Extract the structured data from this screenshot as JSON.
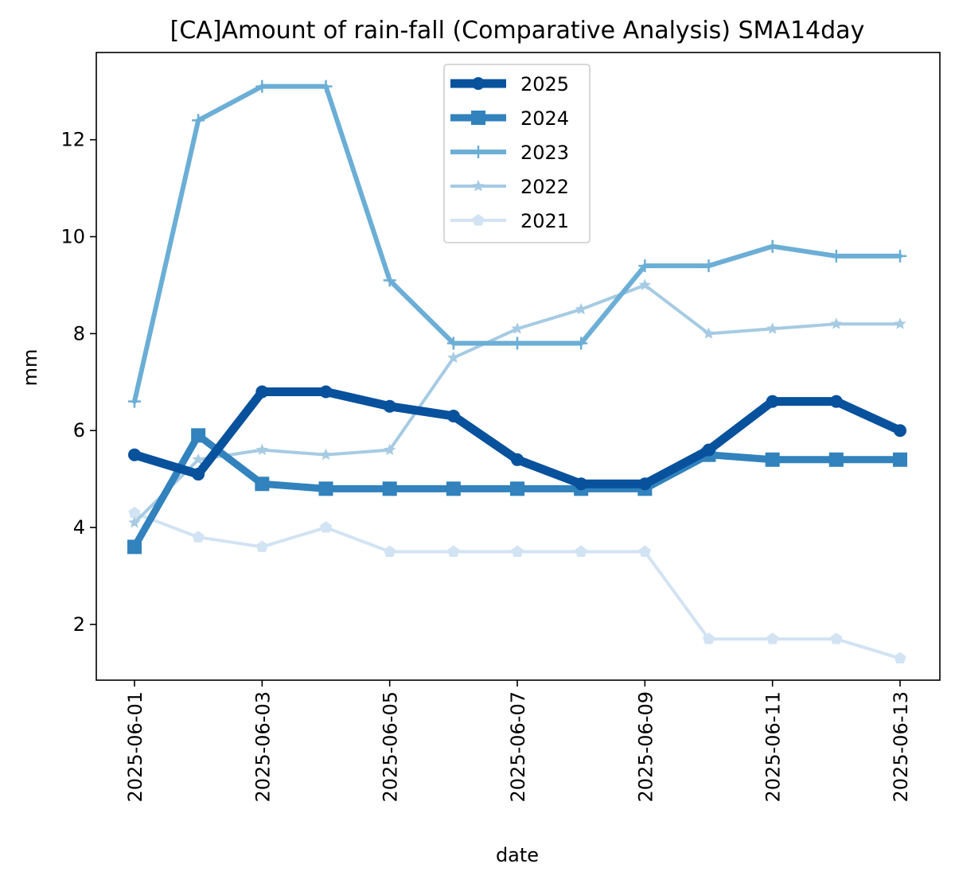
{
  "chart_data": {
    "type": "line",
    "title": "[CA]Amount of rain-fall (Comparative Analysis) SMA14day",
    "xlabel": "date",
    "ylabel": "mm",
    "x": [
      "2025-06-01",
      "2025-06-02",
      "2025-06-03",
      "2025-06-04",
      "2025-06-05",
      "2025-06-06",
      "2025-06-07",
      "2025-06-08",
      "2025-06-09",
      "2025-06-10",
      "2025-06-11",
      "2025-06-12",
      "2025-06-13"
    ],
    "x_ticks": [
      "2025-06-01",
      "2025-06-03",
      "2025-06-05",
      "2025-06-07",
      "2025-06-09",
      "2025-06-11",
      "2025-06-13"
    ],
    "y_ticks": [
      2,
      4,
      6,
      8,
      10,
      12
    ],
    "ylim": [
      0.85,
      13.8
    ],
    "grid": false,
    "legend_position": "top-center",
    "series": [
      {
        "name": "2025",
        "color": "#08519c",
        "marker": "circle",
        "values": [
          5.5,
          5.1,
          6.8,
          6.8,
          6.5,
          6.3,
          5.4,
          4.9,
          4.9,
          5.6,
          6.6,
          6.6,
          6.0
        ]
      },
      {
        "name": "2024",
        "color": "#3182bd",
        "marker": "square",
        "values": [
          3.6,
          5.9,
          4.9,
          4.8,
          4.8,
          4.8,
          4.8,
          4.8,
          4.8,
          5.5,
          5.4,
          5.4,
          5.4
        ]
      },
      {
        "name": "2023",
        "color": "#6baed6",
        "marker": "plus",
        "values": [
          6.6,
          12.4,
          13.1,
          13.1,
          9.1,
          7.8,
          7.8,
          7.8,
          9.4,
          9.4,
          9.8,
          9.6,
          9.6
        ]
      },
      {
        "name": "2022",
        "color": "#a6cbe3",
        "marker": "star",
        "values": [
          4.1,
          5.4,
          5.6,
          5.5,
          5.6,
          7.5,
          8.1,
          8.5,
          9.0,
          8.0,
          8.1,
          8.2,
          8.2
        ]
      },
      {
        "name": "2021",
        "color": "#d2e3f3",
        "marker": "pentagon",
        "values": [
          4.3,
          3.8,
          3.6,
          4.0,
          3.5,
          3.5,
          3.5,
          3.5,
          3.5,
          1.7,
          1.7,
          1.7,
          1.3
        ]
      }
    ]
  }
}
